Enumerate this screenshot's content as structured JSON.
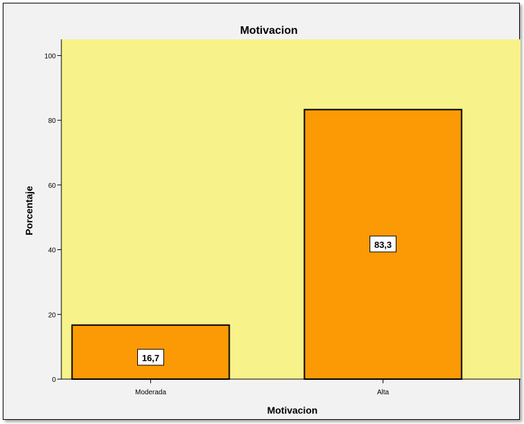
{
  "chart_data": {
    "type": "bar",
    "title": "Motivacion",
    "xlabel": "Motivacion",
    "ylabel": "Porcentaje",
    "categories": [
      "Moderada",
      "Alta"
    ],
    "values": [
      16.7,
      83.3
    ],
    "data_labels": [
      "16,7",
      "83,3"
    ],
    "y_ticks": [
      0,
      20,
      40,
      60,
      80,
      100
    ],
    "ylim": [
      0,
      105
    ],
    "grid": false,
    "colors": {
      "plot_background": "#f7f28a",
      "bar_fill": "#fb9a05",
      "bar_stroke": "#000000",
      "frame_background": "#f2f2f2"
    }
  }
}
